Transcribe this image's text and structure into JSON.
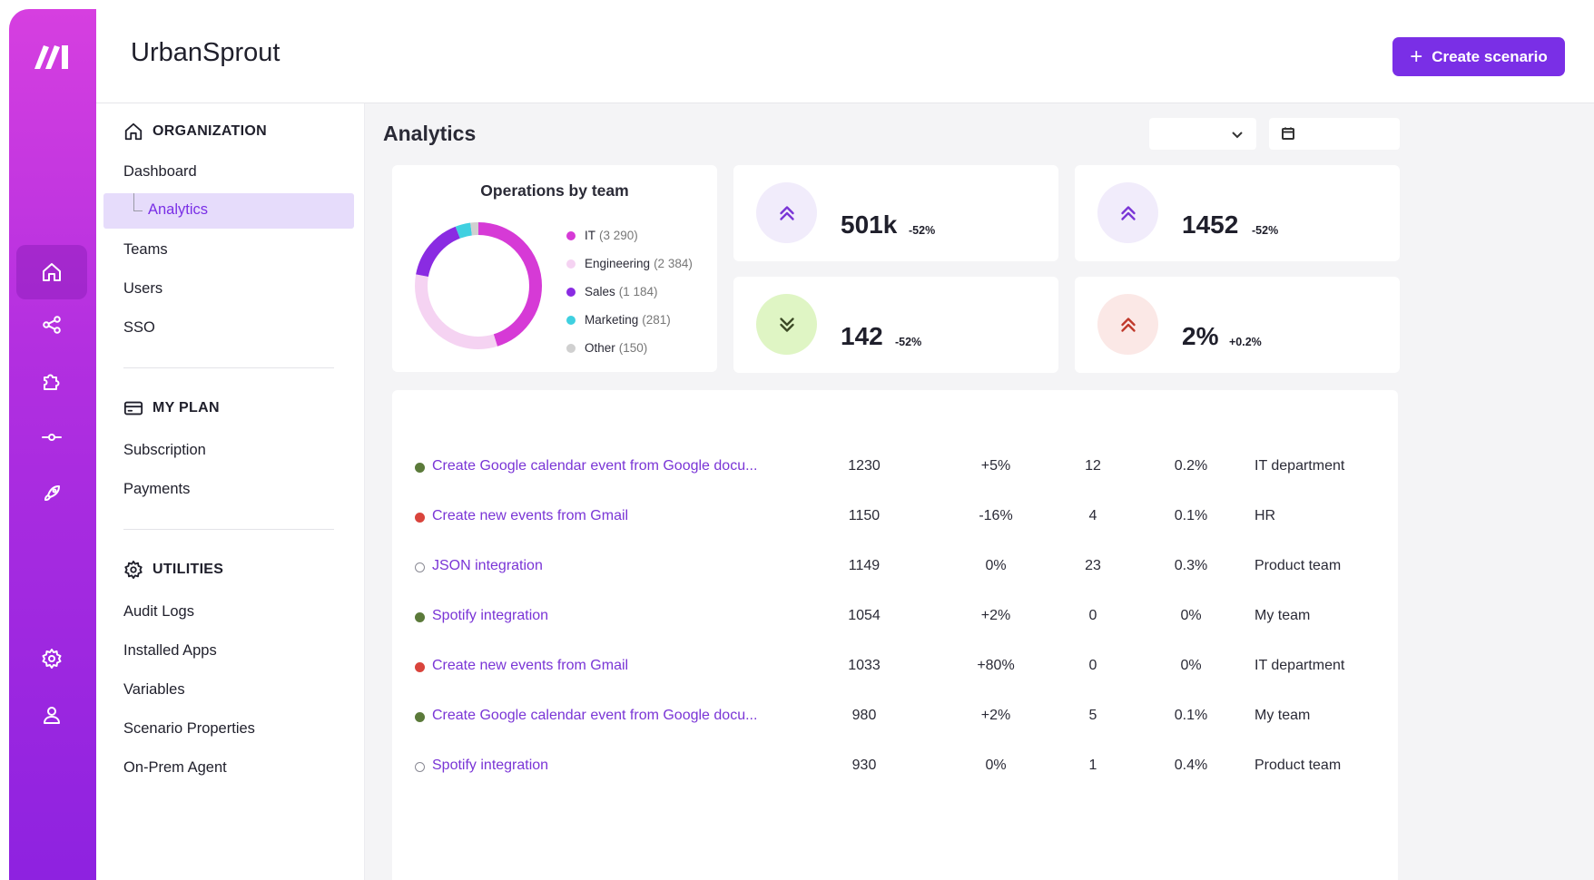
{
  "header": {
    "org_name": "UrbanSprout",
    "create_button_label": "Create scenario"
  },
  "rail": {
    "icons": [
      "make-logo",
      "home-icon",
      "share-icon",
      "puzzle-icon",
      "commit-icon",
      "rocket-icon",
      "gear-icon",
      "user-icon"
    ]
  },
  "subnav": {
    "organization": {
      "heading": "ORGANIZATION",
      "items": [
        "Dashboard",
        "Analytics",
        "Teams",
        "Users",
        "SSO"
      ],
      "active": "Analytics"
    },
    "my_plan": {
      "heading": "MY PLAN",
      "items": [
        "Subscription",
        "Payments"
      ]
    },
    "utilities": {
      "heading": "UTILITIES",
      "items": [
        "Audit Logs",
        "Installed Apps",
        "Variables",
        "Scenario Properties",
        "On-Prem Agent"
      ]
    }
  },
  "main": {
    "title": "Analytics",
    "filter_select_value": "",
    "date_value": ""
  },
  "chart_data": {
    "type": "pie",
    "title": "Operations by team",
    "categories": [
      "IT",
      "Engineering",
      "Sales",
      "Marketing",
      "Other"
    ],
    "values": [
      3290,
      2384,
      1184,
      281,
      150
    ],
    "legend_labels": [
      "IT",
      "Engineering",
      "Sales",
      "Marketing",
      "Other"
    ],
    "legend_counts": [
      "(3 290)",
      "(2 384)",
      "(1 184)",
      "(281)",
      "(150)"
    ],
    "colors": [
      "#d63ad6",
      "#f5d3f2",
      "#8a2be2",
      "#3fd0e0",
      "#d0d0d0"
    ],
    "legend_placement": "right",
    "style": "donut"
  },
  "stats": [
    {
      "value": "501k",
      "delta": "-52%",
      "icon": "chevrons-up-icon",
      "icon_color": "#7a35d6",
      "bg": "#f1ecfb"
    },
    {
      "value": "1452",
      "delta": "-52%",
      "icon": "chevrons-up-icon",
      "icon_color": "#7a35d6",
      "bg": "#f1ecfb"
    },
    {
      "value": "142",
      "delta": "-52%",
      "icon": "chevrons-down-icon",
      "icon_color": "#3c4a26",
      "bg": "#dff5c4"
    },
    {
      "value": "2%",
      "delta": "+0.2%",
      "icon": "chevrons-up-icon",
      "icon_color": "#c0392b",
      "bg": "#fbe8e6"
    }
  ],
  "status_colors": {
    "active": "#5b7a3a",
    "error": "#d9443c",
    "inactive": "#ffffff"
  },
  "table": {
    "rows": [
      {
        "status": "active",
        "name": "Create Google calendar event from Google docu...",
        "ops": "1230",
        "change": "+5%",
        "count": "12",
        "share": "0.2%",
        "team": "IT department"
      },
      {
        "status": "error",
        "name": "Create new events from Gmail",
        "ops": "1150",
        "change": "-16%",
        "count": "4",
        "share": "0.1%",
        "team": "HR"
      },
      {
        "status": "inactive",
        "name": "JSON integration",
        "ops": "1149",
        "change": "0%",
        "count": "23",
        "share": "0.3%",
        "team": "Product team"
      },
      {
        "status": "active",
        "name": "Spotify integration",
        "ops": "1054",
        "change": "+2%",
        "count": "0",
        "share": "0%",
        "team": "My team"
      },
      {
        "status": "error",
        "name": "Create new events from Gmail",
        "ops": "1033",
        "change": "+80%",
        "count": "0",
        "share": "0%",
        "team": "IT department"
      },
      {
        "status": "active",
        "name": "Create Google calendar event from Google docu...",
        "ops": "980",
        "change": "+2%",
        "count": "5",
        "share": "0.1%",
        "team": "My team"
      },
      {
        "status": "inactive",
        "name": "Spotify integration",
        "ops": "930",
        "change": "0%",
        "count": "1",
        "share": "0.4%",
        "team": "Product team"
      }
    ]
  }
}
